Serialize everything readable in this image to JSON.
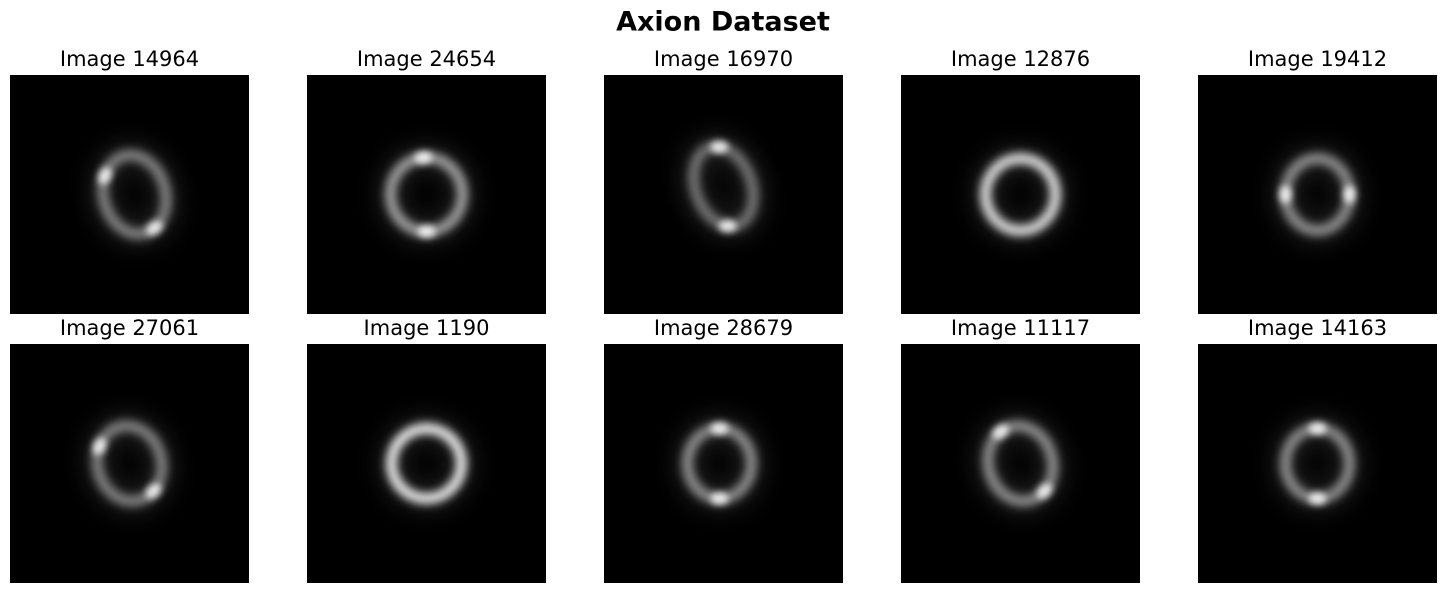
{
  "title": "Axion Dataset",
  "panels": [
    {
      "title": "Image 14964"
    },
    {
      "title": "Image 24654"
    },
    {
      "title": "Image 16970"
    },
    {
      "title": "Image 12876"
    },
    {
      "title": "Image 19412"
    },
    {
      "title": "Image 27061"
    },
    {
      "title": "Image 1190"
    },
    {
      "title": "Image 28679"
    },
    {
      "title": "Image 11117"
    },
    {
      "title": "Image 14163"
    }
  ]
}
